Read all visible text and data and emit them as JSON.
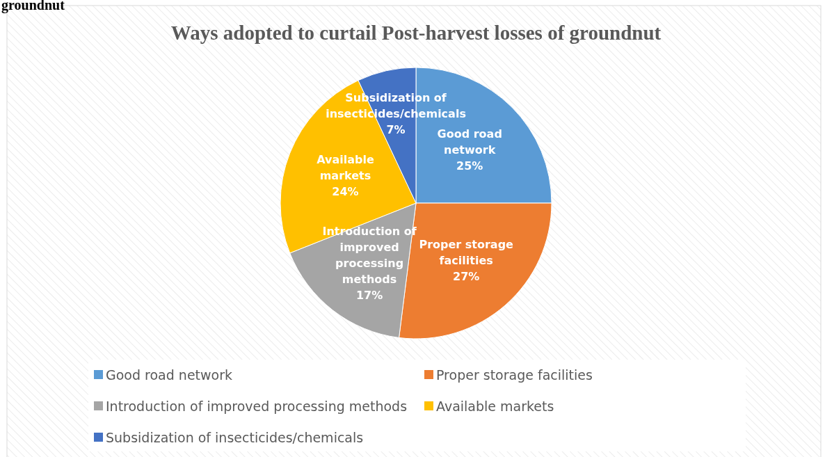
{
  "chart_data": {
    "type": "pie",
    "title": "Ways adopted to curtail Post-harvest losses of groundnut",
    "annotations": [
      "groundnut"
    ],
    "categories": [
      "Good road network",
      "Proper storage facilities",
      "Introduction of improved processing methods",
      "Available markets",
      "Subsidization of insecticides/chemicals"
    ],
    "values": [
      25,
      27,
      17,
      24,
      7
    ],
    "colors": [
      "#5b9bd5",
      "#ed7d31",
      "#a5a5a5",
      "#ffc000",
      "#4472c4"
    ],
    "value_labels": [
      "25%",
      "27%",
      "17%",
      "24%",
      "7%"
    ],
    "legend": "bottom"
  }
}
